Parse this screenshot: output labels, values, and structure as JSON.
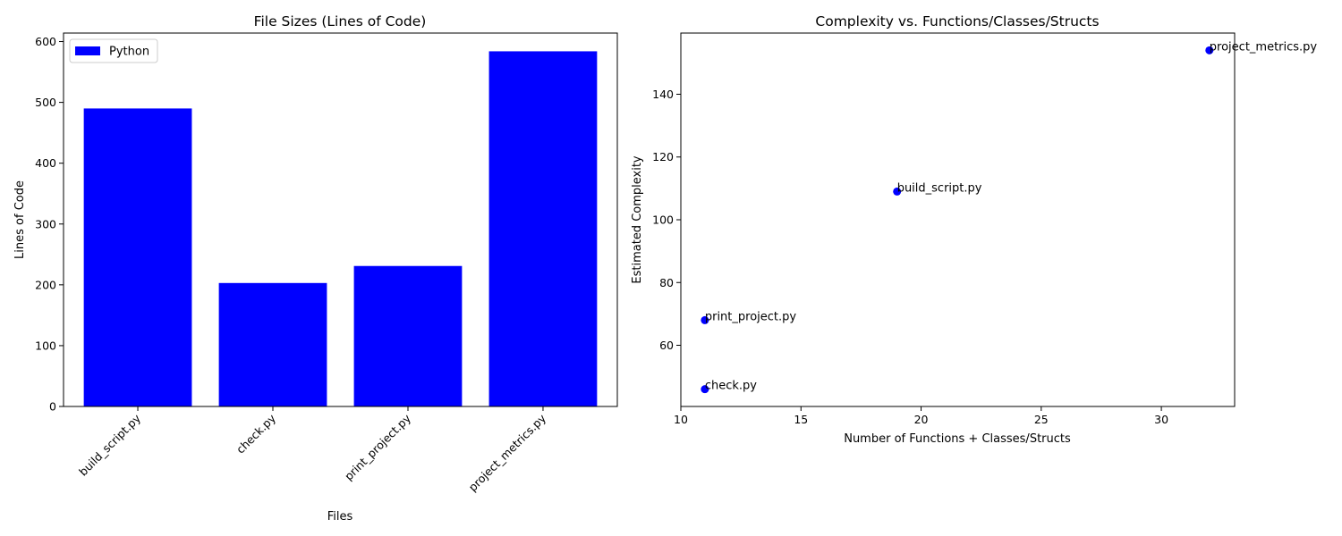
{
  "chart_data": [
    {
      "type": "bar",
      "title": "File Sizes (Lines of Code)",
      "xlabel": "Files",
      "ylabel": "Lines of Code",
      "categories": [
        "build_script.py",
        "check.py",
        "print_project.py",
        "project_metrics.py"
      ],
      "series": [
        {
          "name": "Python",
          "values": [
            490,
            203,
            231,
            584
          ],
          "color": "#0000ff"
        }
      ],
      "ylim": [
        0,
        614
      ],
      "yticks": [
        0,
        100,
        200,
        300,
        400,
        500,
        600
      ],
      "legend": "top-left",
      "grid": false
    },
    {
      "type": "scatter",
      "title": "Complexity vs. Functions/Classes/Structs",
      "xlabel": "Number of Functions + Classes/Structs",
      "ylabel": "Estimated Complexity",
      "xlim": [
        10,
        33.05
      ],
      "ylim": [
        40.5,
        159.5
      ],
      "xticks": [
        10,
        15,
        20,
        25,
        30
      ],
      "yticks": [
        60,
        80,
        100,
        120,
        140
      ],
      "points": [
        {
          "label": "build_script.py",
          "x": 19,
          "y": 109
        },
        {
          "label": "check.py",
          "x": 11,
          "y": 46
        },
        {
          "label": "print_project.py",
          "x": 11,
          "y": 68
        },
        {
          "label": "project_metrics.py",
          "x": 32,
          "y": 154
        }
      ],
      "color": "#0000ff",
      "grid": false
    }
  ]
}
